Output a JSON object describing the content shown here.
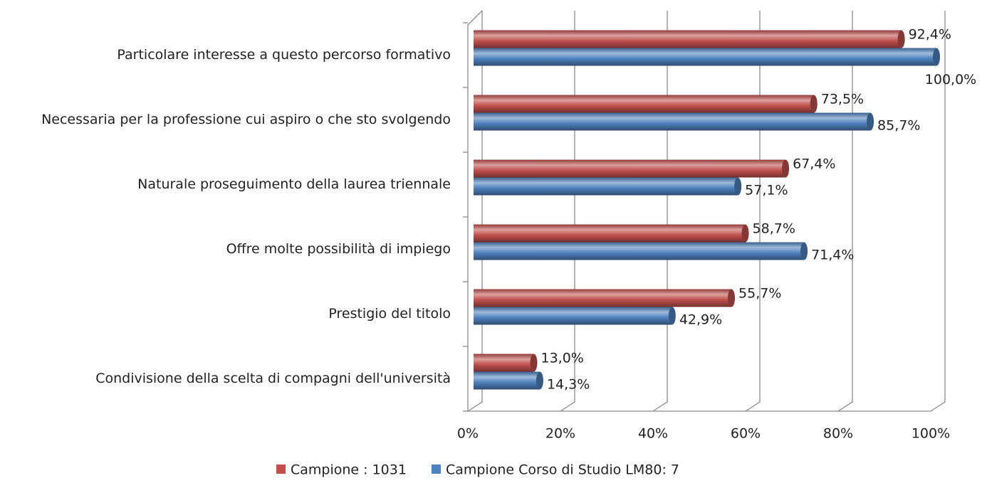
{
  "chart_data": {
    "type": "bar",
    "orientation": "horizontal",
    "categories": [
      "Particolare interesse a questo percorso formativo",
      "Necessaria per la professione cui aspiro o che sto svolgendo",
      "Naturale proseguimento della laurea triennale",
      "Offre molte possibilità di impiego",
      "Prestigio del titolo",
      "Condivisione della scelta di compagni dell'università"
    ],
    "series": [
      {
        "name": "Campione : 1031",
        "color": "#c0504d",
        "values": [
          92.4,
          73.5,
          67.4,
          58.7,
          55.7,
          13.0
        ],
        "value_labels": [
          "92,4%",
          "73,5%",
          "67,4%",
          "58,7%",
          "55,7%",
          "13,0%"
        ]
      },
      {
        "name": "Campione Corso di Studio LM80: 7",
        "color": "#4f81bd",
        "values": [
          100.0,
          85.7,
          57.1,
          71.4,
          42.9,
          14.3
        ],
        "value_labels": [
          "100,0%",
          "85,7%",
          "57,1%",
          "71,4%",
          "42,9%",
          "14,3%"
        ]
      }
    ],
    "xlim": [
      0,
      100
    ],
    "xticks": [
      {
        "value": 0,
        "label": "0%"
      },
      {
        "value": 20,
        "label": "20%"
      },
      {
        "value": 40,
        "label": "40%"
      },
      {
        "value": 60,
        "label": "60%"
      },
      {
        "value": 80,
        "label": "80%"
      },
      {
        "value": 100,
        "label": "100%"
      }
    ],
    "grid": true,
    "legend": "bottom"
  }
}
